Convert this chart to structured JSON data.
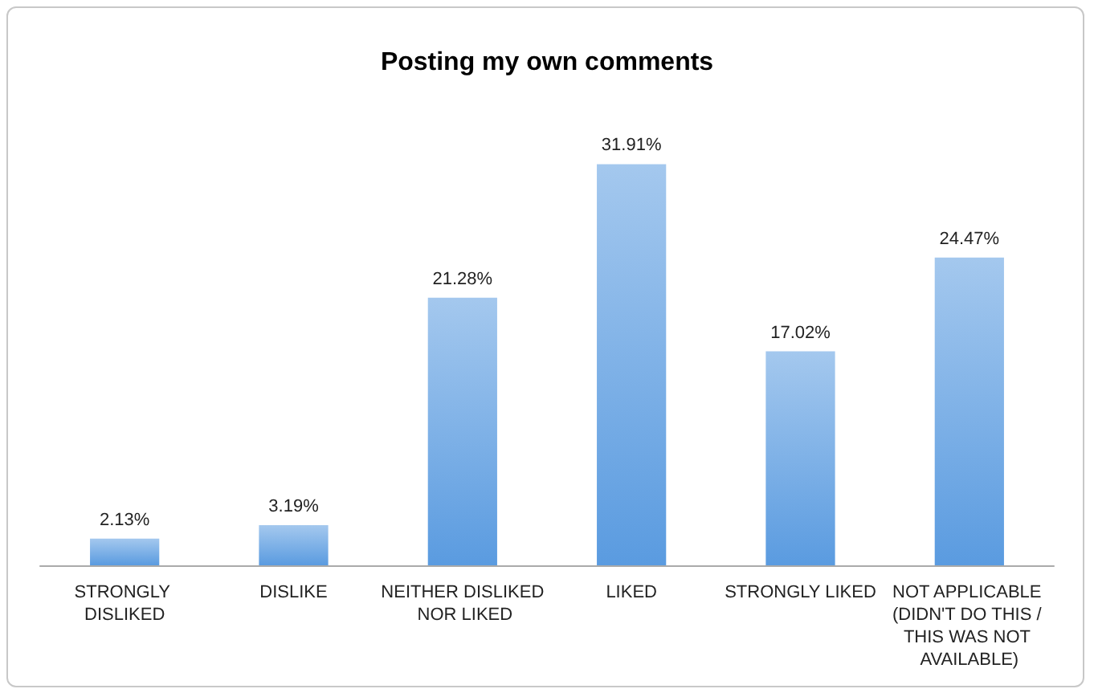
{
  "chart_data": {
    "type": "bar",
    "title": "Posting my own comments",
    "categories": [
      "STRONGLY DISLIKED",
      "DISLIKE",
      "NEITHER DISLIKED NOR LIKED",
      "LIKED",
      "STRONGLY LIKED",
      "NOT APPLICABLE (DIDN'T DO THIS / THIS WAS NOT AVAILABLE)"
    ],
    "values": [
      2.13,
      3.19,
      21.28,
      31.91,
      17.02,
      24.47
    ],
    "value_labels": [
      "2.13%",
      "3.19%",
      "21.28%",
      "31.91%",
      "17.02%",
      "24.47%"
    ],
    "color": "#5a9be0"
  }
}
